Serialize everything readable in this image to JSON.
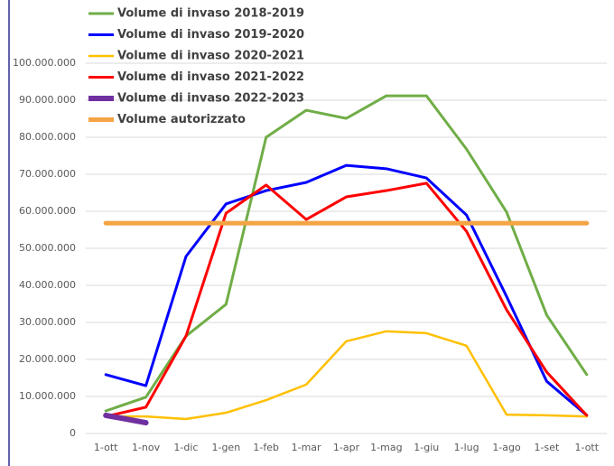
{
  "chart_data": {
    "type": "line",
    "categories": [
      "1-ott",
      "1-nov",
      "1-dic",
      "1-gen",
      "1-feb",
      "1-mar",
      "1-apr",
      "1-mag",
      "1-giu",
      "1-lug",
      "1-ago",
      "1-set",
      "1-ott"
    ],
    "series": [
      {
        "name": "Volume di invaso 2018-2019",
        "color": "#70ad47",
        "width": 3,
        "values": [
          6100000,
          9800000,
          26300000,
          34900000,
          80000000,
          87300000,
          85100000,
          91200000,
          91200000,
          76800000,
          59800000,
          32000000,
          15900000
        ]
      },
      {
        "name": "Volume di invaso 2019-2020",
        "color": "#0000ff",
        "width": 3,
        "values": [
          15900000,
          12900000,
          47800000,
          62000000,
          65600000,
          67800000,
          72400000,
          71500000,
          69000000,
          59000000,
          37000000,
          14100000,
          4900000
        ]
      },
      {
        "name": "Volume di invaso 2020-2021",
        "color": "#ffc000",
        "width": 2.5,
        "values": [
          4600000,
          4600000,
          3900000,
          5600000,
          9000000,
          13200000,
          24900000,
          27600000,
          27100000,
          23700000,
          5100000,
          4900000,
          4600000
        ]
      },
      {
        "name": "Volume di invaso 2021-2022",
        "color": "#ff0000",
        "width": 3,
        "values": [
          4600000,
          7100000,
          26300000,
          59500000,
          67100000,
          57800000,
          63900000,
          65600000,
          67600000,
          54600000,
          33400000,
          16600000,
          4900000
        ]
      },
      {
        "name": "Volume di invaso 2022-2023",
        "color": "#7030a0",
        "width": 6,
        "values": [
          4900000,
          2900000,
          null,
          null,
          null,
          null,
          null,
          null,
          null,
          null,
          null,
          null,
          null
        ]
      },
      {
        "name": "Volume autorizzato",
        "color": "#f4a444",
        "width": 5,
        "values": [
          56800000,
          56800000,
          56800000,
          56800000,
          56800000,
          56800000,
          56800000,
          56800000,
          56800000,
          56800000,
          56800000,
          56800000,
          56800000
        ]
      }
    ],
    "ylim": [
      0,
      100000000
    ],
    "yticks": [
      0,
      {
        "value": 10000000,
        "label": "10.000.000"
      },
      {
        "value": 20000000,
        "label": "20.000.000"
      },
      {
        "value": 30000000,
        "label": "30.000.000"
      },
      {
        "value": 40000000,
        "label": "40.000.000"
      },
      {
        "value": 50000000,
        "label": "50.000.000"
      },
      {
        "value": 60000000,
        "label": "60.000.000"
      },
      {
        "value": 70000000,
        "label": "70.000.000"
      },
      {
        "value": 80000000,
        "label": "80.000.000"
      },
      {
        "value": 90000000,
        "label": "90.000.000"
      },
      {
        "value": 100000000,
        "label": "100.000.000"
      }
    ],
    "grid": true,
    "legend": "top-left"
  }
}
